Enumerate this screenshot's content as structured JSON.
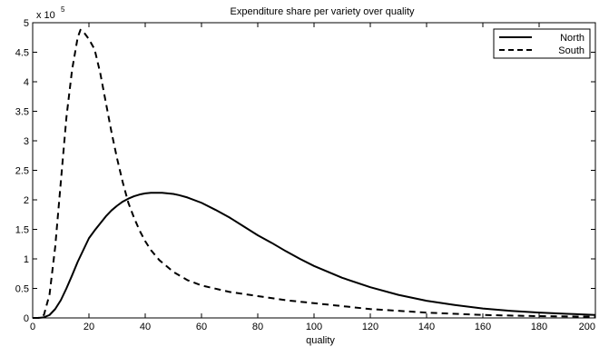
{
  "chart_data": {
    "type": "line",
    "title": "Expenditure share per variety over quality",
    "xlabel": "quality",
    "ylabel": "",
    "y_multiplier_label": "x 10",
    "y_multiplier_exponent": "5",
    "xlim": [
      0,
      200
    ],
    "ylim": [
      0,
      5
    ],
    "x_ticks": [
      0,
      20,
      40,
      60,
      80,
      100,
      120,
      140,
      160,
      180,
      200
    ],
    "x_tick_labels": [
      "0",
      "20",
      "40",
      "60",
      "80",
      "100",
      "120",
      "140",
      "160",
      "180",
      "200"
    ],
    "y_ticks": [
      0,
      0.5,
      1,
      1.5,
      2,
      2.5,
      3,
      3.5,
      4,
      4.5,
      5
    ],
    "y_tick_labels": [
      "0",
      "0.5",
      "1",
      "1.5",
      "2",
      "2.5",
      "3",
      "3.5",
      "4",
      "4.5",
      "5"
    ],
    "grid": false,
    "legend_position": "top-right",
    "series": [
      {
        "name": "North",
        "style": "solid",
        "color": "#000000",
        "x": [
          0,
          2,
          4,
          6,
          8,
          10,
          12,
          14,
          16,
          18,
          20,
          22,
          24,
          26,
          28,
          30,
          32,
          34,
          36,
          38,
          40,
          42,
          44,
          46,
          48,
          50,
          52,
          55,
          60,
          65,
          70,
          75,
          80,
          85,
          90,
          95,
          100,
          110,
          120,
          130,
          140,
          150,
          160,
          170,
          180,
          190,
          200
        ],
        "y": [
          0,
          0,
          0.01,
          0.05,
          0.15,
          0.3,
          0.5,
          0.72,
          0.95,
          1.15,
          1.35,
          1.48,
          1.6,
          1.72,
          1.82,
          1.9,
          1.97,
          2.02,
          2.06,
          2.09,
          2.11,
          2.12,
          2.12,
          2.12,
          2.11,
          2.1,
          2.08,
          2.04,
          1.95,
          1.83,
          1.7,
          1.55,
          1.4,
          1.27,
          1.13,
          1.0,
          0.88,
          0.68,
          0.52,
          0.39,
          0.29,
          0.22,
          0.16,
          0.12,
          0.09,
          0.07,
          0.05
        ]
      },
      {
        "name": "South",
        "style": "dashed",
        "color": "#000000",
        "x": [
          0,
          2,
          4,
          6,
          8,
          10,
          12,
          14,
          16,
          17,
          18,
          20,
          22,
          24,
          26,
          28,
          30,
          32,
          34,
          36,
          38,
          40,
          42,
          45,
          50,
          55,
          60,
          70,
          80,
          90,
          100,
          110,
          120,
          140,
          160,
          180,
          200
        ],
        "y": [
          0,
          0,
          0.05,
          0.4,
          1.2,
          2.3,
          3.4,
          4.2,
          4.75,
          4.88,
          4.85,
          4.72,
          4.55,
          4.15,
          3.65,
          3.15,
          2.7,
          2.3,
          1.95,
          1.7,
          1.48,
          1.3,
          1.15,
          0.98,
          0.78,
          0.64,
          0.55,
          0.44,
          0.37,
          0.3,
          0.25,
          0.2,
          0.15,
          0.09,
          0.05,
          0.03,
          0.02
        ]
      }
    ]
  }
}
